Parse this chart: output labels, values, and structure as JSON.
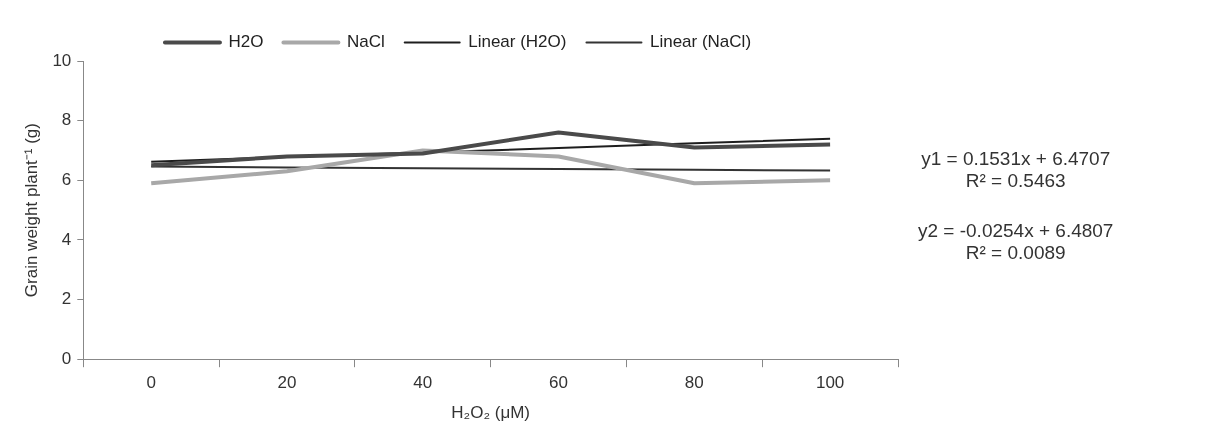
{
  "chart_data": {
    "type": "line",
    "xlabel": "H₂O₂ (μM)",
    "ylabel": "Grain weight plant⁻¹ (g)",
    "categories": [
      "0",
      "20",
      "40",
      "60",
      "80",
      "100"
    ],
    "series": [
      {
        "name": "H2O",
        "color": "#4a4a4a",
        "values": [
          6.5,
          6.8,
          6.9,
          7.6,
          7.1,
          7.2
        ]
      },
      {
        "name": "NaCl",
        "color": "#a8a8a8",
        "values": [
          5.9,
          6.3,
          7.0,
          6.8,
          5.9,
          6.0
        ]
      },
      {
        "name": "Linear (H2O)",
        "color": "#1e1e1e",
        "values": [
          6.62,
          6.78,
          6.93,
          7.08,
          7.24,
          7.39
        ]
      },
      {
        "name": "Linear (NaCl)",
        "color": "#333333",
        "values": [
          6.46,
          6.43,
          6.4,
          6.38,
          6.35,
          6.33
        ]
      }
    ],
    "ylim": [
      0,
      10
    ],
    "yticks": [
      0,
      2,
      4,
      6,
      8,
      10
    ],
    "grid": false,
    "legend": "top",
    "marker": "none",
    "line_style": "solid",
    "annotations": [
      "y1 = 0.1531x + 6.4707\nR² = 0.5463",
      "y2 = -0.0254x + 6.4807\nR² = 0.0089"
    ]
  }
}
